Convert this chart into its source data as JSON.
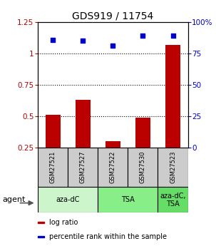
{
  "title": "GDS919 / 11754",
  "samples": [
    "GSM27521",
    "GSM27527",
    "GSM27522",
    "GSM27530",
    "GSM27523"
  ],
  "log_ratio": [
    0.51,
    0.63,
    0.3,
    0.49,
    1.07
  ],
  "percentile_rank_pct": [
    86,
    85,
    81,
    89,
    89
  ],
  "bar_color": "#bb0000",
  "dot_color": "#0000cc",
  "ylim_left": [
    0.25,
    1.25
  ],
  "ylim_right": [
    0,
    100
  ],
  "yticks_left": [
    0.25,
    0.5,
    0.75,
    1.0,
    1.25
  ],
  "ytick_labels_left": [
    "0.25",
    "0.5",
    "0.75",
    "1",
    "1.25"
  ],
  "yticks_right": [
    0,
    25,
    50,
    75,
    100
  ],
  "ytick_labels_right": [
    "0",
    "25",
    "50",
    "75",
    "100%"
  ],
  "hlines": [
    0.5,
    0.75,
    1.0
  ],
  "agent_groups": [
    {
      "label": "aza-dC",
      "start": 0,
      "end": 2,
      "color": "#ccf5cc"
    },
    {
      "label": "TSA",
      "start": 2,
      "end": 4,
      "color": "#88ee88"
    },
    {
      "label": "aza-dC,\nTSA",
      "start": 4,
      "end": 5,
      "color": "#66dd66"
    }
  ],
  "legend_items": [
    {
      "color": "#bb0000",
      "label": "log ratio"
    },
    {
      "color": "#0000cc",
      "label": "percentile rank within the sample"
    }
  ],
  "bar_width": 0.5,
  "sample_box_color": "#cccccc",
  "agent_label": "agent",
  "background_color": "#ffffff"
}
